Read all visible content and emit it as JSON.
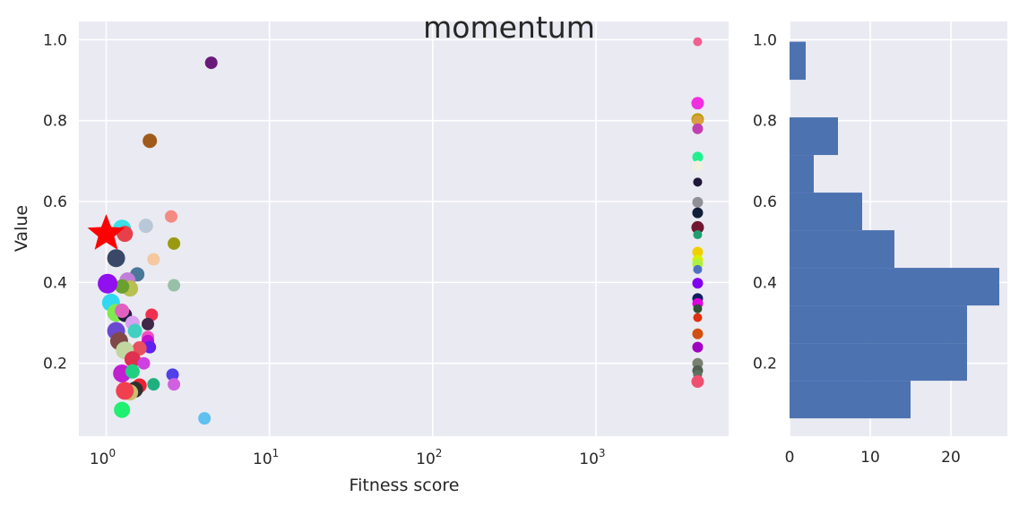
{
  "title": "momentum",
  "colors": {
    "panel_bg": "#EAEAF2",
    "grid": "#FFFFFF",
    "hist_bar": "#4C72B0",
    "star": "#FF0000"
  },
  "chart_data": [
    {
      "type": "scatter",
      "title": "momentum",
      "xlabel": "Fitness score",
      "ylabel": "Value",
      "xscale": "log",
      "xlim": [
        0.68,
        6500
      ],
      "ylim": [
        0.02,
        1.045
      ],
      "grid": true,
      "xticks": [
        1,
        10,
        100,
        1000
      ],
      "xtick_labels": [
        {
          "base": "10",
          "exp": "0"
        },
        {
          "base": "10",
          "exp": "1"
        },
        {
          "base": "10",
          "exp": "2"
        },
        {
          "base": "10",
          "exp": "3"
        }
      ],
      "yticks": [
        0.2,
        0.4,
        0.6,
        0.8,
        1.0
      ],
      "ytick_labels": [
        "0.2",
        "0.4",
        "0.6",
        "0.8",
        "1.0"
      ],
      "highlight": {
        "marker": "star",
        "x": 1.0,
        "y": 0.52,
        "color": "#FF0000"
      },
      "points": [
        {
          "x": 4.4,
          "y": 0.943,
          "color": "#6A1B7A",
          "size": 7
        },
        {
          "x": 1.85,
          "y": 0.75,
          "color": "#A05A1A",
          "size": 8
        },
        {
          "x": 1.25,
          "y": 0.533,
          "color": "#3ADFE8",
          "size": 10
        },
        {
          "x": 1.3,
          "y": 0.52,
          "color": "#E8404A",
          "size": 9
        },
        {
          "x": 1.75,
          "y": 0.54,
          "color": "#B8C8D8",
          "size": 8
        },
        {
          "x": 2.5,
          "y": 0.563,
          "color": "#F58A82",
          "size": 7
        },
        {
          "x": 2.6,
          "y": 0.496,
          "color": "#9A9A10",
          "size": 7
        },
        {
          "x": 1.95,
          "y": 0.457,
          "color": "#F6C8A0",
          "size": 7
        },
        {
          "x": 1.15,
          "y": 0.46,
          "color": "#3A4868",
          "size": 10
        },
        {
          "x": 1.55,
          "y": 0.42,
          "color": "#4A7898",
          "size": 8
        },
        {
          "x": 1.35,
          "y": 0.405,
          "color": "#C080D8",
          "size": 9
        },
        {
          "x": 1.4,
          "y": 0.385,
          "color": "#B8C050",
          "size": 9
        },
        {
          "x": 1.25,
          "y": 0.39,
          "color": "#6AA030",
          "size": 8
        },
        {
          "x": 1.02,
          "y": 0.397,
          "color": "#9010F0",
          "size": 11
        },
        {
          "x": 2.6,
          "y": 0.393,
          "color": "#98C0A8",
          "size": 7
        },
        {
          "x": 1.07,
          "y": 0.35,
          "color": "#30D8F0",
          "size": 10
        },
        {
          "x": 1.15,
          "y": 0.325,
          "color": "#80E850",
          "size": 10
        },
        {
          "x": 1.3,
          "y": 0.32,
          "color": "#202040",
          "size": 8
        },
        {
          "x": 1.25,
          "y": 0.33,
          "color": "#E060C0",
          "size": 8
        },
        {
          "x": 1.9,
          "y": 0.32,
          "color": "#F03050",
          "size": 7
        },
        {
          "x": 1.45,
          "y": 0.3,
          "color": "#D8A0F0",
          "size": 8
        },
        {
          "x": 1.8,
          "y": 0.297,
          "color": "#402848",
          "size": 7
        },
        {
          "x": 1.5,
          "y": 0.28,
          "color": "#40D0C0",
          "size": 8
        },
        {
          "x": 1.15,
          "y": 0.28,
          "color": "#6A48D0",
          "size": 10
        },
        {
          "x": 1.2,
          "y": 0.255,
          "color": "#804848",
          "size": 10
        },
        {
          "x": 1.8,
          "y": 0.265,
          "color": "#F050C0",
          "size": 7
        },
        {
          "x": 1.8,
          "y": 0.255,
          "color": "#C010D0",
          "size": 7
        },
        {
          "x": 1.85,
          "y": 0.24,
          "color": "#6020F0",
          "size": 7
        },
        {
          "x": 1.6,
          "y": 0.237,
          "color": "#E85060",
          "size": 8
        },
        {
          "x": 1.3,
          "y": 0.232,
          "color": "#C0D8A0",
          "size": 10
        },
        {
          "x": 1.45,
          "y": 0.21,
          "color": "#E03050",
          "size": 9
        },
        {
          "x": 1.7,
          "y": 0.2,
          "color": "#D040E0",
          "size": 7
        },
        {
          "x": 1.25,
          "y": 0.175,
          "color": "#C020D0",
          "size": 10
        },
        {
          "x": 1.45,
          "y": 0.18,
          "color": "#20D080",
          "size": 8
        },
        {
          "x": 2.55,
          "y": 0.172,
          "color": "#5040E8",
          "size": 7
        },
        {
          "x": 1.95,
          "y": 0.148,
          "color": "#20B080",
          "size": 7
        },
        {
          "x": 2.6,
          "y": 0.148,
          "color": "#D060E0",
          "size": 7
        },
        {
          "x": 1.6,
          "y": 0.145,
          "color": "#F02030",
          "size": 8
        },
        {
          "x": 1.5,
          "y": 0.135,
          "color": "#303030",
          "size": 9
        },
        {
          "x": 1.4,
          "y": 0.128,
          "color": "#C8C070",
          "size": 9
        },
        {
          "x": 1.3,
          "y": 0.132,
          "color": "#F04050",
          "size": 10
        },
        {
          "x": 1.25,
          "y": 0.085,
          "color": "#20F070",
          "size": 9
        },
        {
          "x": 4.0,
          "y": 0.064,
          "color": "#60C0F0",
          "size": 7
        },
        {
          "x": 4200,
          "y": 0.995,
          "color": "#F06090",
          "size": 5
        },
        {
          "x": 4200,
          "y": 0.843,
          "color": "#F030E0",
          "size": 7
        },
        {
          "x": 4200,
          "y": 0.803,
          "color": "#B8A000",
          "size": 7
        },
        {
          "x": 4200,
          "y": 0.8,
          "color": "#D8A040",
          "size": 6
        },
        {
          "x": 4200,
          "y": 0.78,
          "color": "#C040B0",
          "size": 6
        },
        {
          "x": 4200,
          "y": 0.71,
          "color": "#20F090",
          "size": 6
        },
        {
          "x": 4200,
          "y": 0.688,
          "color": "#F0F0E0",
          "size": 6
        },
        {
          "x": 4200,
          "y": 0.648,
          "color": "#201838",
          "size": 5
        },
        {
          "x": 4200,
          "y": 0.598,
          "color": "#909098",
          "size": 6
        },
        {
          "x": 4200,
          "y": 0.572,
          "color": "#102038",
          "size": 6
        },
        {
          "x": 4200,
          "y": 0.536,
          "color": "#701830",
          "size": 7
        },
        {
          "x": 4200,
          "y": 0.518,
          "color": "#20A070",
          "size": 5
        },
        {
          "x": 4200,
          "y": 0.475,
          "color": "#F0D000",
          "size": 6
        },
        {
          "x": 4200,
          "y": 0.455,
          "color": "#D8F000",
          "size": 6
        },
        {
          "x": 4200,
          "y": 0.445,
          "color": "#B0F040",
          "size": 6
        },
        {
          "x": 4200,
          "y": 0.432,
          "color": "#5070C0",
          "size": 5
        },
        {
          "x": 4200,
          "y": 0.398,
          "color": "#8000F0",
          "size": 6
        },
        {
          "x": 4200,
          "y": 0.36,
          "color": "#102060",
          "size": 6
        },
        {
          "x": 4200,
          "y": 0.348,
          "color": "#E000E0",
          "size": 6
        },
        {
          "x": 4200,
          "y": 0.335,
          "color": "#305038",
          "size": 5
        },
        {
          "x": 4200,
          "y": 0.313,
          "color": "#E03010",
          "size": 5
        },
        {
          "x": 4200,
          "y": 0.273,
          "color": "#D05010",
          "size": 6
        },
        {
          "x": 4200,
          "y": 0.24,
          "color": "#A000C0",
          "size": 6
        },
        {
          "x": 4200,
          "y": 0.2,
          "color": "#788070",
          "size": 6
        },
        {
          "x": 4200,
          "y": 0.182,
          "color": "#506050",
          "size": 6
        },
        {
          "x": 4200,
          "y": 0.172,
          "color": "#607060",
          "size": 5
        },
        {
          "x": 4200,
          "y": 0.155,
          "color": "#F05070",
          "size": 7
        }
      ]
    },
    {
      "type": "bar",
      "orientation": "horizontal",
      "xlim": [
        0,
        27
      ],
      "ylim": [
        0.02,
        1.045
      ],
      "grid": true,
      "xticks": [
        0,
        10,
        20
      ],
      "xtick_labels": [
        "0",
        "10",
        "20"
      ],
      "yticks": [
        0.2,
        0.4,
        0.6,
        0.8,
        1.0
      ],
      "ytick_labels": [
        "0.2",
        "0.4",
        "0.6",
        "0.8",
        "1.0"
      ],
      "bins": [
        {
          "from": 0.064,
          "to": 0.157,
          "count": 15
        },
        {
          "from": 0.157,
          "to": 0.25,
          "count": 22
        },
        {
          "from": 0.25,
          "to": 0.343,
          "count": 22
        },
        {
          "from": 0.343,
          "to": 0.436,
          "count": 26
        },
        {
          "from": 0.436,
          "to": 0.529,
          "count": 13
        },
        {
          "from": 0.529,
          "to": 0.622,
          "count": 9
        },
        {
          "from": 0.622,
          "to": 0.715,
          "count": 3
        },
        {
          "from": 0.715,
          "to": 0.808,
          "count": 6
        },
        {
          "from": 0.808,
          "to": 0.901,
          "count": 0
        },
        {
          "from": 0.901,
          "to": 0.995,
          "count": 2
        }
      ]
    }
  ]
}
